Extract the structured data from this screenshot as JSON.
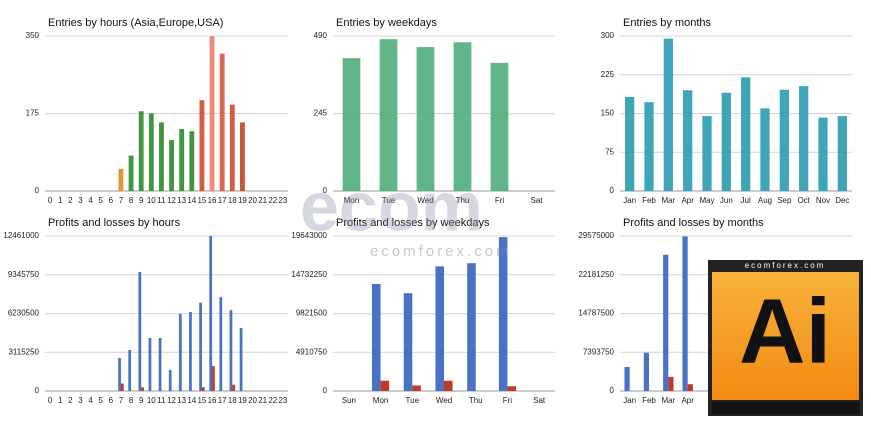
{
  "chart_data": [
    {
      "type": "bar",
      "title": "Entries by hours (Asia,Europe,USA)",
      "categories": [
        "0",
        "1",
        "2",
        "3",
        "4",
        "5",
        "6",
        "7",
        "8",
        "9",
        "10",
        "11",
        "12",
        "13",
        "14",
        "15",
        "16",
        "17",
        "18",
        "19",
        "20",
        "21",
        "22",
        "23"
      ],
      "values": [
        0,
        0,
        0,
        0,
        0,
        0,
        0,
        50,
        80,
        180,
        175,
        155,
        115,
        140,
        135,
        205,
        350,
        310,
        195,
        155,
        0,
        0,
        0,
        0
      ],
      "colors": [
        "#2e8b2e",
        "#2e8b2e",
        "#2e8b2e",
        "#2e8b2e",
        "#2e8b2e",
        "#2e8b2e",
        "#2e8b2e",
        "#e08a1e",
        "#2e8b2e",
        "#2e8b2e",
        "#2e8b2e",
        "#2e8b2e",
        "#2e8b2e",
        "#2e8b2e",
        "#2e8b2e",
        "#cf4a30",
        "#e8826a",
        "#d9553c",
        "#cf4a30",
        "#c04428",
        "#c04428",
        "#c04428",
        "#c04428",
        "#c04428"
      ],
      "ylim": [
        0,
        350
      ],
      "yticks": [
        0,
        175,
        350
      ],
      "grid": true
    },
    {
      "type": "bar",
      "title": "Entries by weekdays",
      "categories": [
        "Mon",
        "Tue",
        "Wed",
        "Thu",
        "Fri",
        "Sat"
      ],
      "values": [
        420,
        480,
        455,
        470,
        405,
        0
      ],
      "color": "#4fae7c",
      "ylim": [
        0,
        490
      ],
      "yticks": [
        0,
        245,
        490
      ],
      "grid": true
    },
    {
      "type": "bar",
      "title": "Entries by months",
      "categories": [
        "Jan",
        "Feb",
        "Mar",
        "Apr",
        "May",
        "Jun",
        "Jul",
        "Aug",
        "Sep",
        "Oct",
        "Nov",
        "Dec"
      ],
      "values": [
        182,
        172,
        295,
        195,
        145,
        190,
        220,
        160,
        196,
        203,
        142,
        145
      ],
      "color": "#2a9bb0",
      "ylim": [
        0,
        300
      ],
      "yticks": [
        0,
        75,
        150,
        225,
        300
      ],
      "grid": true
    },
    {
      "type": "bar",
      "title": "Profits and losses by hours",
      "categories": [
        "0",
        "1",
        "2",
        "3",
        "4",
        "5",
        "6",
        "7",
        "8",
        "9",
        "10",
        "11",
        "12",
        "13",
        "14",
        "15",
        "16",
        "17",
        "18",
        "19",
        "20",
        "21",
        "22",
        "23"
      ],
      "series": [
        {
          "color": "#4a72c4",
          "values": [
            0,
            0,
            0,
            0,
            0,
            0,
            0,
            2650000,
            3300000,
            9570000,
            4260000,
            4260000,
            1700000,
            6200000,
            6350000,
            7100000,
            12461000,
            7550000,
            6500000,
            5060000,
            0,
            0,
            0,
            0
          ]
        },
        {
          "color": "#c0392b",
          "values": [
            0,
            0,
            0,
            0,
            0,
            0,
            0,
            600000,
            0,
            300000,
            0,
            0,
            0,
            0,
            0,
            300000,
            2000000,
            0,
            500000,
            0,
            0,
            0,
            0,
            0
          ]
        }
      ],
      "ylim": [
        0,
        12461000
      ],
      "yticks": [
        0,
        3115250,
        6230500,
        9345750,
        12461000
      ],
      "grid": true
    },
    {
      "type": "bar",
      "title": "Profits and losses by weekdays",
      "categories": [
        "Sun",
        "Mon",
        "Tue",
        "Wed",
        "Thu",
        "Fri",
        "Sat"
      ],
      "series": [
        {
          "color": "#4a72c4",
          "values": [
            0,
            13560000,
            12400000,
            15800000,
            16200000,
            19500000,
            0
          ]
        },
        {
          "color": "#c0392b",
          "values": [
            0,
            1300000,
            700000,
            1300000,
            0,
            600000,
            0
          ]
        }
      ],
      "ylim": [
        0,
        19643000
      ],
      "yticks": [
        0,
        4910750,
        9821500,
        14732250,
        19643000
      ],
      "grid": true
    },
    {
      "type": "bar",
      "title": "Profits and losses by months",
      "categories": [
        "Jan",
        "Feb",
        "Mar",
        "Apr",
        null,
        null,
        null,
        null,
        null,
        null,
        null,
        null
      ],
      "series": [
        {
          "color": "#4a72c4",
          "values": [
            4600000,
            7300000,
            26000000,
            29500000,
            null,
            null,
            null,
            null,
            null,
            null,
            null,
            null
          ]
        },
        {
          "color": "#c0392b",
          "values": [
            0,
            0,
            2700000,
            1300000,
            null,
            null,
            null,
            null,
            null,
            null,
            null,
            null
          ]
        }
      ],
      "ylim": [
        0,
        29575000
      ],
      "yticks": [
        0,
        7393750,
        14787500,
        22181250,
        29575000
      ],
      "grid": true
    }
  ],
  "watermark": {
    "logo": "ecom",
    "site": "ecomforex.com"
  },
  "ad": {
    "site": "ecomforex.com",
    "logo": "Ai"
  }
}
